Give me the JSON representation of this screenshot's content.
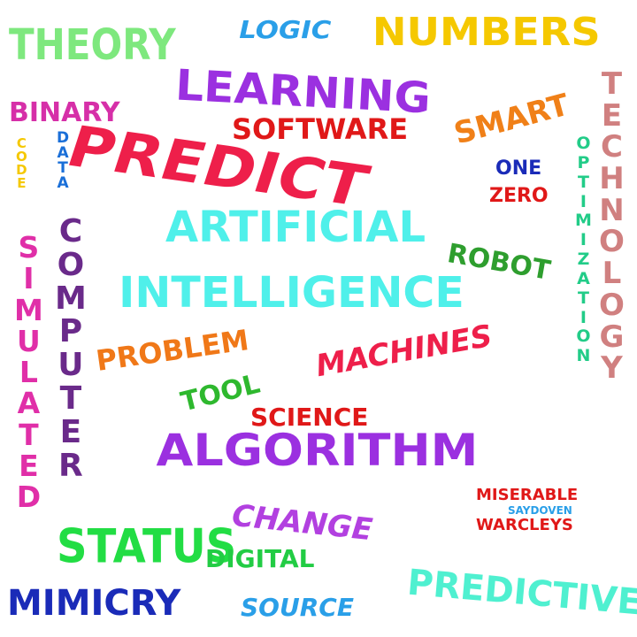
{
  "words": {
    "theory": "THEORY",
    "logic": "LOGIC",
    "numbers": "NUMBERS",
    "learning": "LEARNING",
    "binary": "BINARY",
    "software": "SOFTWARE",
    "smart": "SMART",
    "predict": "PREDICT",
    "one": "ONE",
    "zero": "ZERO",
    "artificial": "ARTIFICIAL",
    "robot": "ROBOT",
    "intelligence": "INTELLIGENCE",
    "problem": "PROBLEM",
    "machines": "MACHINES",
    "tool": "TOOL",
    "science": "SCIENCE",
    "algorithm": "ALGORITHM",
    "change": "CHANGE",
    "status": "STATUS",
    "digital": "DIGITAL",
    "mimicry": "MIMICRY",
    "source": "SOURCE",
    "predictive": "PREDICTIVE",
    "code": "CODE",
    "data": "DATA",
    "computer": "COMPUTER",
    "simulated": "SIMULATED",
    "optimization": "OPTIMIZATION",
    "technology": "TECHNOLOGY"
  },
  "signature": {
    "line1": "MISERABLE",
    "line2": "SAYDOVEN",
    "line3": "WARCLEYS"
  },
  "colors": {
    "theory": "#7ee87e",
    "logic": "#2a9fe8",
    "numbers": "#f5c800",
    "learning": "#9b30e0",
    "binary": "#d62fa8",
    "software": "#e01818",
    "smart": "#f08018",
    "predict": "#ee1f4a",
    "one": "#1a2bb8",
    "zero": "#e01818",
    "artificial": "#4ff0ea",
    "robot": "#2e9e2e",
    "intelligence": "#4ff0ea",
    "problem": "#f07818",
    "machines": "#ee1f4a",
    "tool": "#2eb82e",
    "science": "#e01818",
    "algorithm": "#9b30e0",
    "change": "#b240e0",
    "status": "#22dd44",
    "digital": "#22cc44",
    "mimicry": "#1a2bb8",
    "source": "#2a9fe8",
    "predictive": "#4ff0d0",
    "code": "#f5c800",
    "data": "#1a6fd8",
    "computer": "#6a2a8a",
    "simulated": "#e02fa8",
    "optimization": "#22cc88",
    "technology": "#d08080",
    "sig_red": "#e01818",
    "sig_blue": "#2a9fe8"
  }
}
